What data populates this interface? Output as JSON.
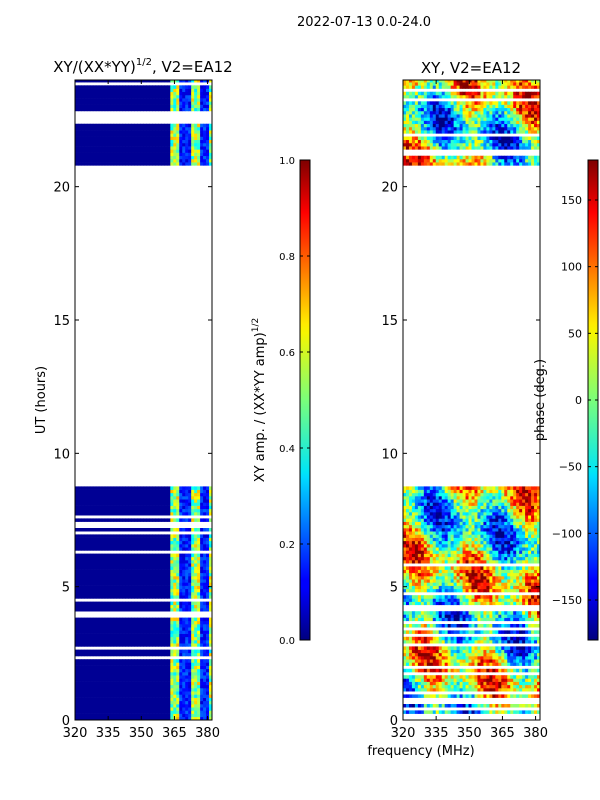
{
  "figure": {
    "suptitle": "2022-07-13 0.0-24.0",
    "shared_xlabel": "frequency (MHz)"
  },
  "chart_data": [
    {
      "type": "heatmap",
      "title_main": "XY/(XX*YY)",
      "title_exponent": "1/2",
      "title_suffix": ", V2=EA12",
      "xlabel": "",
      "ylabel": "UT (hours)",
      "xlim": [
        320,
        382
      ],
      "ylim": [
        0,
        24
      ],
      "xticks": [
        320,
        335,
        350,
        365,
        380
      ],
      "yticks": [
        0,
        5,
        10,
        15,
        20
      ],
      "data_hour_ranges": [
        [
          0,
          8.7
        ],
        [
          20.8,
          24
        ]
      ],
      "colorbar": {
        "label_main": "XY amp. / (XX*YY amp)",
        "label_exponent": "1/2",
        "range": [
          0.0,
          1.0
        ],
        "ticks": [
          "0.0",
          "0.2",
          "0.4",
          "0.6",
          "0.8",
          "1.0"
        ],
        "tick_values": [
          0.0,
          0.2,
          0.4,
          0.6,
          0.8,
          1.0
        ]
      }
    },
    {
      "type": "heatmap",
      "title_main": "XY, V2=EA12",
      "xlabel": "",
      "ylabel": "",
      "xlim": [
        320,
        382
      ],
      "ylim": [
        0,
        24
      ],
      "xticks": [
        320,
        335,
        350,
        365,
        380
      ],
      "yticks": [
        0,
        5,
        10,
        15,
        20
      ],
      "data_hour_ranges": [
        [
          0,
          8.7
        ],
        [
          20.8,
          24
        ]
      ],
      "colorbar": {
        "label_main": "phase (deg.)",
        "range": [
          -180,
          180
        ],
        "ticks": [
          "−150",
          "−100",
          "−50",
          "0",
          "50",
          "100",
          "150"
        ],
        "tick_values": [
          -150,
          -100,
          -50,
          0,
          50,
          100,
          150
        ]
      }
    }
  ]
}
